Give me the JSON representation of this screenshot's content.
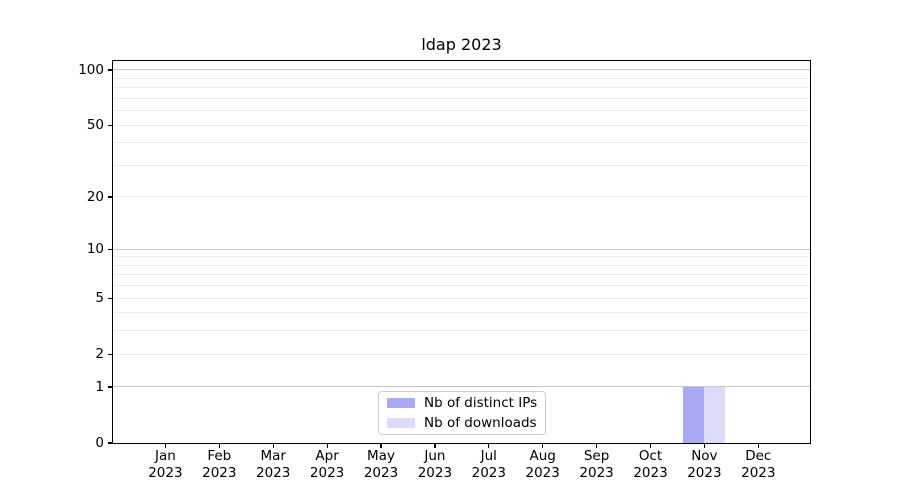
{
  "chart_data": {
    "type": "bar",
    "title": "ldap 2023",
    "categories": [
      "Jan 2023",
      "Feb 2023",
      "Mar 2023",
      "Apr 2023",
      "May 2023",
      "Jun 2023",
      "Jul 2023",
      "Aug 2023",
      "Sep 2023",
      "Oct 2023",
      "Nov 2023",
      "Dec 2023"
    ],
    "x_tick_month_labels": [
      "Jan",
      "Feb",
      "Mar",
      "Apr",
      "May",
      "Jun",
      "Jul",
      "Aug",
      "Sep",
      "Oct",
      "Nov",
      "Dec"
    ],
    "x_tick_year_label": "2023",
    "series": [
      {
        "name": "Nb of distinct IPs",
        "color": "#a9a9f6",
        "values": [
          0,
          0,
          0,
          0,
          0,
          0,
          0,
          0,
          0,
          0,
          1,
          0
        ]
      },
      {
        "name": "Nb of downloads",
        "color": "#dcdcfa",
        "values": [
          0,
          0,
          0,
          0,
          0,
          0,
          0,
          0,
          0,
          0,
          1,
          0
        ]
      }
    ],
    "y_axis": {
      "scale": "log10(1+value)",
      "tick_values": [
        0,
        1,
        2,
        5,
        10,
        20,
        50,
        100
      ],
      "tick_labels": [
        "0",
        "1",
        "2",
        "5",
        "10",
        "20",
        "50",
        "100"
      ],
      "major_gridline_values": [
        1,
        10,
        100
      ],
      "minor_gridline_values": [
        2,
        3,
        4,
        5,
        6,
        7,
        8,
        9,
        20,
        30,
        40,
        50,
        60,
        70,
        80,
        90
      ],
      "ylim": [
        0,
        112
      ]
    },
    "legend": {
      "position": "bottom-center",
      "entries": [
        "Nb of distinct IPs",
        "Nb of downloads"
      ]
    },
    "grid": true,
    "colors": {
      "major_gridline": "#c8c8c8",
      "minor_gridline": "#ebebeb",
      "axis": "#000000",
      "background": "#ffffff"
    }
  }
}
